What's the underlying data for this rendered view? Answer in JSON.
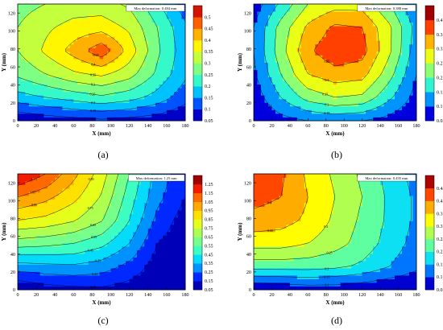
{
  "figure": {
    "panels": [
      {
        "caption": "(a)",
        "max_label": "Max deformation: 0.484 mm"
      },
      {
        "caption": "(b)",
        "max_label": "Max deformation: 0.388 mm"
      },
      {
        "caption": "(c)",
        "max_label": "Max deformation: 1.25 mm"
      },
      {
        "caption": "(d)",
        "max_label": "Max deformation: 0.435 mm"
      }
    ]
  },
  "chart_data": [
    {
      "type": "heatmap",
      "panel": "(a)",
      "xlabel": "X (mm)",
      "ylabel": "Y (mm)",
      "xlim": [
        0,
        180
      ],
      "ylim": [
        0,
        130
      ],
      "x_ticks": [
        0,
        20,
        40,
        60,
        80,
        100,
        120,
        140,
        160,
        180
      ],
      "y_ticks": [
        0,
        20,
        40,
        60,
        80,
        100,
        120
      ],
      "colorbar_ticks": [
        0.05,
        0.1,
        0.15,
        0.2,
        0.25,
        0.3,
        0.35,
        0.4,
        0.45,
        0.5
      ],
      "colorbar_range": [
        0.05,
        0.55
      ],
      "annotation": "Max deformation: 0.484 mm",
      "x": [
        0,
        30,
        60,
        90,
        120,
        150,
        180
      ],
      "y": [
        0,
        26,
        52,
        78,
        104,
        130
      ],
      "z": [
        [
          0.05,
          0.07,
          0.08,
          0.09,
          0.08,
          0.07,
          0.05
        ],
        [
          0.18,
          0.2,
          0.22,
          0.24,
          0.22,
          0.18,
          0.12
        ],
        [
          0.26,
          0.3,
          0.34,
          0.36,
          0.32,
          0.24,
          0.16
        ],
        [
          0.3,
          0.36,
          0.42,
          0.484,
          0.38,
          0.26,
          0.17
        ],
        [
          0.3,
          0.34,
          0.37,
          0.38,
          0.34,
          0.25,
          0.16
        ],
        [
          0.28,
          0.3,
          0.32,
          0.32,
          0.29,
          0.21,
          0.12
        ]
      ],
      "contour_levels": [
        0.05,
        0.1,
        0.15,
        0.2,
        0.25,
        0.3,
        0.35,
        0.4,
        0.45
      ]
    },
    {
      "type": "heatmap",
      "panel": "(b)",
      "xlabel": "X (mm)",
      "ylabel": "Y (mm)",
      "xlim": [
        0,
        180
      ],
      "ylim": [
        0,
        130
      ],
      "x_ticks": [
        0,
        20,
        40,
        60,
        80,
        100,
        120,
        140,
        160,
        180
      ],
      "y_ticks": [
        0,
        20,
        40,
        60,
        80,
        100,
        120
      ],
      "colorbar_ticks": [
        0.05,
        0.1,
        0.15,
        0.2,
        0.25,
        0.3,
        0.35,
        0.4
      ],
      "colorbar_range": [
        0.05,
        0.42
      ],
      "annotation": "Max deformation: 0.388 mm",
      "x": [
        0,
        30,
        60,
        90,
        120,
        150,
        180
      ],
      "y": [
        0,
        26,
        52,
        78,
        104,
        130
      ],
      "z": [
        [
          0.05,
          0.08,
          0.1,
          0.11,
          0.1,
          0.08,
          0.05
        ],
        [
          0.07,
          0.15,
          0.22,
          0.25,
          0.24,
          0.16,
          0.08
        ],
        [
          0.09,
          0.2,
          0.3,
          0.33,
          0.32,
          0.22,
          0.1
        ],
        [
          0.1,
          0.23,
          0.34,
          0.388,
          0.37,
          0.26,
          0.12
        ],
        [
          0.1,
          0.22,
          0.31,
          0.36,
          0.35,
          0.26,
          0.13
        ],
        [
          0.07,
          0.16,
          0.25,
          0.28,
          0.28,
          0.2,
          0.1
        ]
      ],
      "contour_levels": [
        0.05,
        0.1,
        0.15,
        0.2,
        0.25,
        0.3,
        0.35
      ]
    },
    {
      "type": "heatmap",
      "panel": "(c)",
      "xlabel": "X (mm)",
      "ylabel": "Y (mm)",
      "xlim": [
        0,
        180
      ],
      "ylim": [
        0,
        130
      ],
      "x_ticks": [
        0,
        20,
        40,
        60,
        80,
        100,
        120,
        140,
        160,
        180
      ],
      "y_ticks": [
        0,
        20,
        40,
        60,
        80,
        100,
        120
      ],
      "colorbar_ticks": [
        0.05,
        0.15,
        0.25,
        0.35,
        0.45,
        0.55,
        0.65,
        0.75,
        0.85,
        0.95,
        1.05,
        1.15,
        1.25
      ],
      "colorbar_range": [
        0.05,
        1.3
      ],
      "annotation": "Max deformation: 1.25 mm",
      "x": [
        0,
        30,
        60,
        90,
        120,
        150,
        180
      ],
      "y": [
        0,
        26,
        52,
        78,
        104,
        130
      ],
      "z": [
        [
          0.05,
          0.1,
          0.12,
          0.13,
          0.1,
          0.06,
          0.05
        ],
        [
          0.3,
          0.32,
          0.33,
          0.3,
          0.22,
          0.1,
          0.05
        ],
        [
          0.6,
          0.58,
          0.55,
          0.48,
          0.35,
          0.15,
          0.08
        ],
        [
          0.85,
          0.82,
          0.76,
          0.66,
          0.45,
          0.22,
          0.1
        ],
        [
          1.05,
          0.98,
          0.88,
          0.74,
          0.5,
          0.28,
          0.15
        ],
        [
          1.25,
          1.15,
          0.98,
          0.8,
          0.55,
          0.3,
          0.2
        ]
      ],
      "contour_levels": [
        0.15,
        0.25,
        0.35,
        0.45,
        0.55,
        0.65,
        0.75,
        0.85,
        0.95,
        1.05,
        1.15
      ]
    },
    {
      "type": "heatmap",
      "panel": "(d)",
      "xlabel": "X (mm)",
      "ylabel": "Y (mm)",
      "xlim": [
        0,
        180
      ],
      "ylim": [
        0,
        130
      ],
      "x_ticks": [
        0,
        20,
        40,
        60,
        80,
        100,
        120,
        140,
        160,
        180
      ],
      "y_ticks": [
        0,
        20,
        40,
        60,
        80,
        100,
        120
      ],
      "colorbar_ticks": [
        0.05,
        0.1,
        0.15,
        0.2,
        0.25,
        0.3,
        0.35,
        0.4,
        0.45
      ],
      "colorbar_range": [
        0.05,
        0.48
      ],
      "annotation": "Max deformation: 0.435 mm",
      "x": [
        0,
        30,
        60,
        90,
        120,
        150,
        180
      ],
      "y": [
        0,
        26,
        52,
        78,
        104,
        130
      ],
      "z": [
        [
          0.05,
          0.06,
          0.07,
          0.07,
          0.06,
          0.05,
          0.05
        ],
        [
          0.22,
          0.22,
          0.22,
          0.21,
          0.19,
          0.15,
          0.11
        ],
        [
          0.32,
          0.32,
          0.3,
          0.27,
          0.23,
          0.18,
          0.13
        ],
        [
          0.38,
          0.37,
          0.34,
          0.29,
          0.24,
          0.19,
          0.14
        ],
        [
          0.42,
          0.4,
          0.35,
          0.3,
          0.25,
          0.19,
          0.14
        ],
        [
          0.435,
          0.41,
          0.34,
          0.29,
          0.24,
          0.18,
          0.13
        ]
      ],
      "contour_levels": [
        0.1,
        0.15,
        0.2,
        0.25,
        0.3,
        0.35,
        0.4
      ]
    }
  ],
  "colors": {
    "colormap": [
      "#000080",
      "#0000ff",
      "#0080ff",
      "#00d8ff",
      "#40ffc0",
      "#80ff80",
      "#c0ff40",
      "#ffff00",
      "#ffc000",
      "#ff8000",
      "#ff2000",
      "#a00000"
    ],
    "axis": "#000000",
    "contour_line": "#000000"
  }
}
